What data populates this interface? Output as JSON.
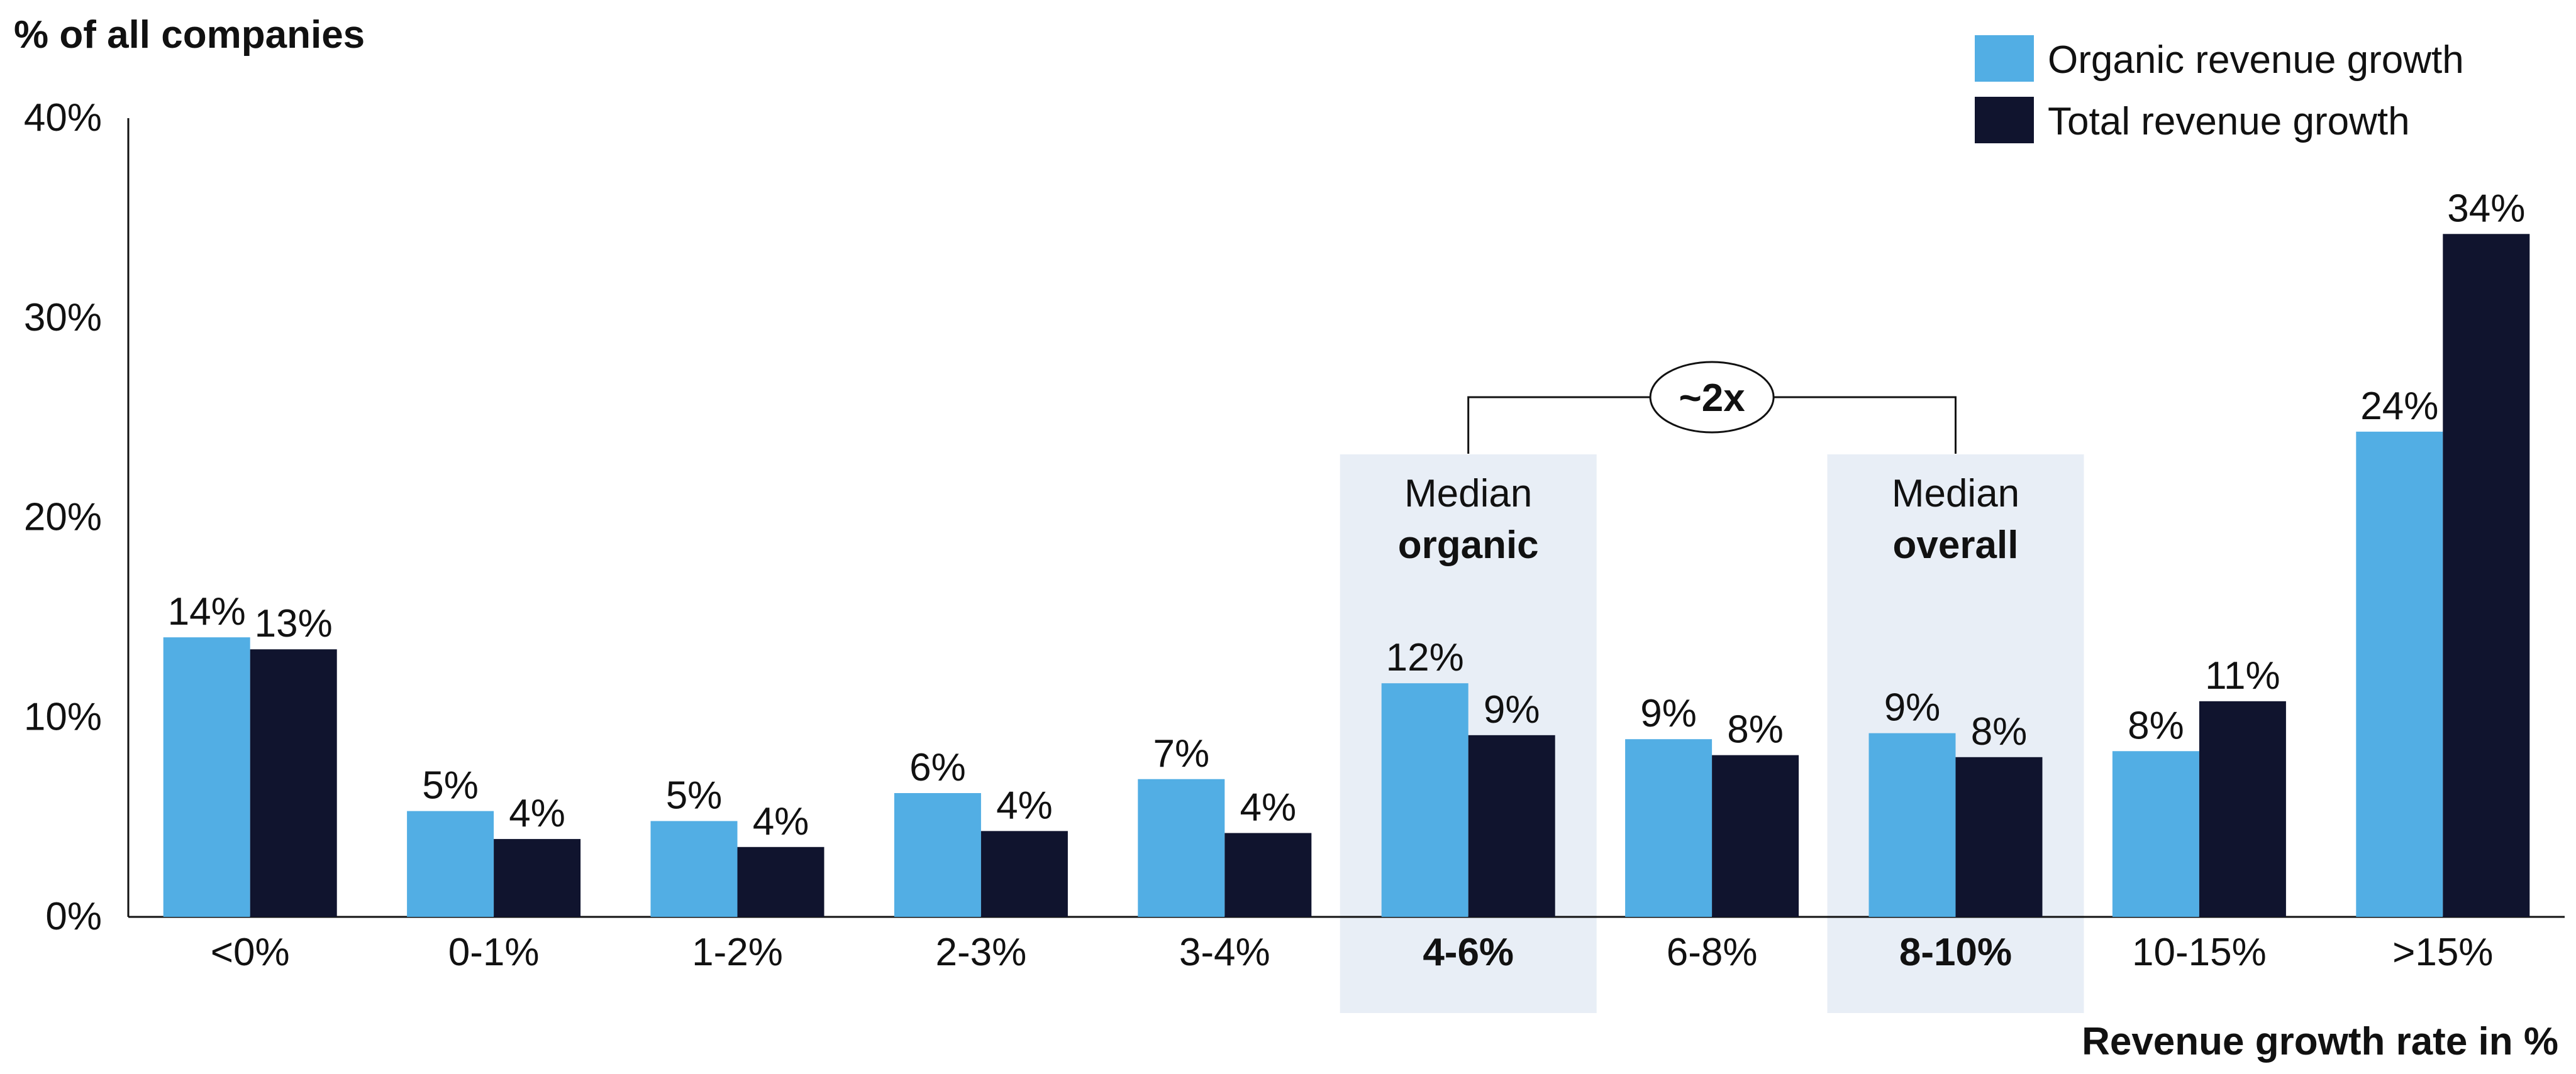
{
  "chart_data": {
    "type": "bar",
    "ylabel": "% of all companies",
    "xlabel": "Revenue growth rate in %",
    "ylim": [
      0,
      40
    ],
    "y_ticks": [
      {
        "value": 0,
        "label": "0%"
      },
      {
        "value": 10,
        "label": "10%"
      },
      {
        "value": 20,
        "label": "20%"
      },
      {
        "value": 30,
        "label": "30%"
      },
      {
        "value": 40,
        "label": "40%"
      }
    ],
    "categories": [
      "<0%",
      "0-1%",
      "1-2%",
      "2-3%",
      "3-4%",
      "4-6%",
      "6-8%",
      "8-10%",
      "10-15%",
      ">15%"
    ],
    "highlighted_categories": [
      "4-6%",
      "8-10%"
    ],
    "series": [
      {
        "name": "Organic revenue growth",
        "color": "#52AEE4",
        "values": [
          14,
          5.3,
          4.8,
          6.2,
          6.9,
          11.7,
          8.9,
          9.2,
          8.3,
          24.3
        ],
        "data_labels": [
          "14%",
          "5%",
          "5%",
          "6%",
          "7%",
          "12%",
          "9%",
          "9%",
          "8%",
          "24%"
        ]
      },
      {
        "name": "Total revenue growth",
        "color": "#10142E",
        "values": [
          13.4,
          3.9,
          3.5,
          4.3,
          4.2,
          9.1,
          8.1,
          8.0,
          10.8,
          34.2
        ],
        "data_labels": [
          "13%",
          "4%",
          "4%",
          "4%",
          "4%",
          "9%",
          "8%",
          "8%",
          "11%",
          "34%"
        ]
      }
    ],
    "legend_position": "top-right",
    "grid": false,
    "annotations": {
      "median_organic": {
        "category": "4-6%",
        "line1": "Median",
        "line2": "organic"
      },
      "median_overall": {
        "category": "8-10%",
        "line1": "Median",
        "line2": "overall"
      },
      "ratio_label": "~2x"
    }
  }
}
